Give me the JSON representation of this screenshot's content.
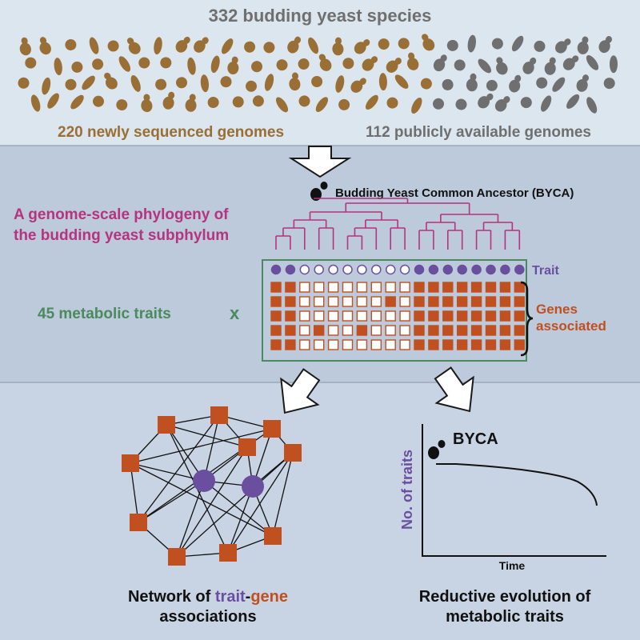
{
  "header": {
    "title": "332 budding yeast species",
    "new_label": "220 newly sequenced genomes",
    "public_label": "112 publicly available genomes"
  },
  "phylogeny": {
    "ancestor_label": "Budding Yeast Common Ancestor (BYCA)",
    "title_line1": "A genome-scale phylogeny of",
    "title_line2": "the budding yeast subphylum"
  },
  "matrix": {
    "trait_label": "Trait",
    "genes_line1": "Genes",
    "genes_line2": "associated",
    "traits_label": "45 metabolic traits",
    "times_symbol": "x",
    "trait_row": [
      1,
      1,
      0,
      0,
      0,
      0,
      0,
      0,
      0,
      0,
      1,
      1,
      1,
      1,
      1,
      1,
      1,
      1
    ],
    "gene_rows": [
      [
        1,
        1,
        0,
        0,
        0,
        0,
        0,
        0,
        0,
        0,
        1,
        1,
        1,
        1,
        1,
        1,
        1,
        1
      ],
      [
        1,
        1,
        0,
        0,
        0,
        0,
        0,
        0,
        1,
        0,
        1,
        1,
        1,
        1,
        1,
        1,
        1,
        1
      ],
      [
        1,
        1,
        0,
        0,
        0,
        0,
        0,
        0,
        0,
        0,
        1,
        1,
        1,
        1,
        1,
        1,
        1,
        1
      ],
      [
        1,
        1,
        0,
        1,
        0,
        0,
        1,
        0,
        0,
        0,
        1,
        1,
        1,
        1,
        1,
        1,
        1,
        1
      ],
      [
        1,
        1,
        0,
        0,
        0,
        0,
        0,
        0,
        0,
        0,
        1,
        1,
        1,
        1,
        1,
        1,
        1,
        1
      ]
    ]
  },
  "network": {
    "caption_prefix": "Network of ",
    "caption_trait": "trait",
    "caption_dash": "-",
    "caption_gene": "gene",
    "caption_line2": "associations"
  },
  "reduction": {
    "byca_label": "BYCA",
    "ylabel": "No. of traits",
    "xlabel": "Time",
    "caption_line1": "Reductive evolution of",
    "caption_line2": "metabolic traits"
  },
  "colors": {
    "new_yeast": "#9a6f35",
    "public_yeast": "#6f6f6f",
    "tree": "#b5337f",
    "trait": "#6a4f9e",
    "gene": "#c0501f",
    "matrix_border": "#4a8a5e",
    "traits_text": "#4a8a5e",
    "panel_top": "#dce6ee",
    "panel_mid": "#bccadb",
    "panel_bottom": "#c8d4e3"
  }
}
